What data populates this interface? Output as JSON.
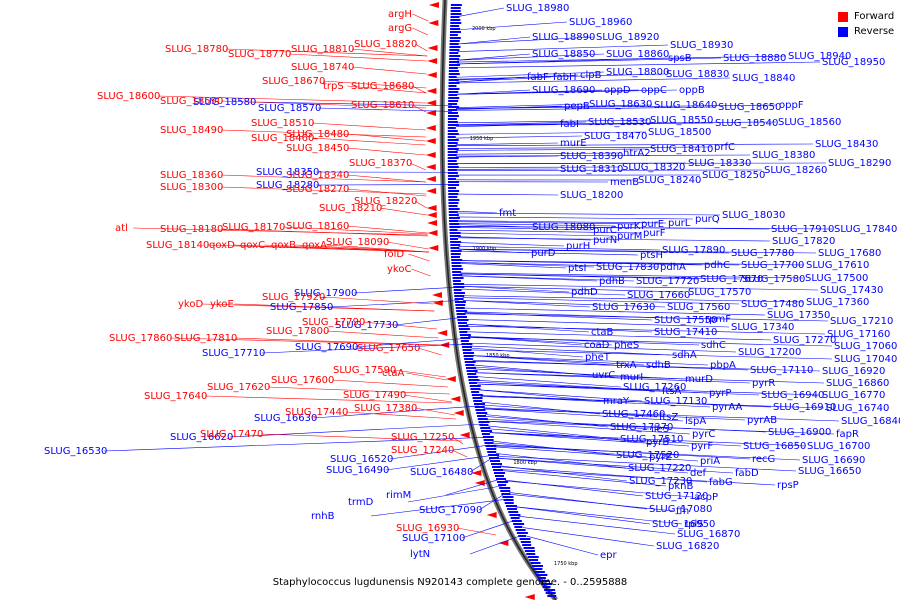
{
  "legend": {
    "forward_label": "Forward",
    "reverse_label": "Reverse",
    "forward_color": "#ff0000",
    "reverse_color": "#0000ff"
  },
  "caption": "Staphylococcus lugdunensis N920143 complete genome. - 0..2595888",
  "scale_ticks": [
    "2000 kbp",
    "1950 kbp",
    "1900 kbp",
    "1850 kbp",
    "1800 kbp",
    "1750 kbp"
  ],
  "forward_genes": [
    "argH",
    "argG",
    "SLUG_18780",
    "SLUG_18770",
    "SLUG_18810",
    "SLUG_18820",
    "SLUG_18740",
    "SLUG_18670",
    "trpS",
    "SLUG_18680",
    "SLUG_18600",
    "SLUG_18590",
    "SLUG_18610",
    "SLUG_18490",
    "SLUG_18510",
    "SLUG_18460",
    "SLUG_18480",
    "SLUG_18450",
    "SLUG_18370",
    "SLUG_18360",
    "SLUG_18340",
    "SLUG_18300",
    "SLUG_18270",
    "SLUG_18210",
    "SLUG_18220",
    "atl",
    "SLUG_18180",
    "SLUG_18170",
    "SLUG_18160",
    "SLUG_18140",
    "qoxD",
    "qoxC",
    "qoxB",
    "qoxA",
    "SLUG_18090",
    "folD",
    "ykoC",
    "ykoD",
    "ykoE",
    "SLUG_17920",
    "SLUG_17790",
    "SLUG_17800",
    "SLUG_17860",
    "SLUG_17810",
    "SLUG_17650",
    "SLUG_17590",
    "SLUG_17600",
    "SLUG_17620",
    "SLUG_17640",
    "ctaA",
    "SLUG_17490",
    "SLUG_17440",
    "SLUG_17380",
    "SLUG_17470",
    "SLUG_17250",
    "SLUG_17240",
    "SLUG_16930"
  ],
  "reverse_genes": [
    "SLUG_18980",
    "SLUG_18960",
    "SLUG_18890",
    "SLUG_18920",
    "SLUG_18930",
    "SLUG_18850",
    "SLUG_18860",
    "spsB",
    "SLUG_18880",
    "SLUG_18940",
    "SLUG_18950",
    "fabF",
    "fabH",
    "clpB",
    "SLUG_18800",
    "SLUG_18830",
    "SLUG_18840",
    "SLUG_18690",
    "oppD",
    "oppC",
    "oppB",
    "SLUG_18580",
    "SLUG_18570",
    "pepB",
    "SLUG_18630",
    "SLUG_18640",
    "SLUG_18650",
    "oppF",
    "fabI",
    "SLUG_18530",
    "SLUG_18550",
    "SLUG_18540",
    "SLUG_18560",
    "SLUG_18470",
    "SLUG_18500",
    "murE",
    "SLUG_18410",
    "prfC",
    "SLUG_18430",
    "SLUG_18390",
    "htrA2",
    "SLUG_18380",
    "SLUG_18310",
    "SLUG_18320",
    "SLUG_18330",
    "SLUG_18290",
    "SLUG_18350",
    "menB",
    "SLUG_18240",
    "SLUG_18250",
    "SLUG_18260",
    "SLUG_18280",
    "SLUG_18200",
    "fmt",
    "SLUG_18030",
    "SLUG_18080",
    "purC",
    "purK",
    "purE",
    "purL",
    "purQ",
    "SLUG_17910",
    "SLUG_17840",
    "purD",
    "purH",
    "purN",
    "purM",
    "purF",
    "SLUG_17820",
    "ptsH",
    "SLUG_17890",
    "SLUG_17780",
    "SLUG_17680",
    "ptsI",
    "SLUG_17830",
    "pdhA",
    "pdhC",
    "SLUG_17700",
    "SLUG_17610",
    "pdhB",
    "SLUG_17720",
    "SLUG_17670",
    "SLUG_17580",
    "SLUG_17500",
    "pdhD",
    "SLUG_17660",
    "SLUG_17570",
    "SLUG_17430",
    "SLUG_17900",
    "SLUG_17630",
    "SLUG_17560",
    "SLUG_17480",
    "SLUG_17360",
    "SLUG_17850",
    "SLUG_17550",
    "rpmF",
    "SLUG_17350",
    "SLUG_17210",
    "SLUG_17730",
    "ctaB",
    "SLUG_17410",
    "SLUG_17340",
    "SLUG_17160",
    "coaD",
    "pheS",
    "sdhC",
    "SLUG_17270",
    "SLUG_17060",
    "SLUG_17710",
    "SLUG_17690",
    "pheT",
    "sdhA",
    "SLUG_17200",
    "SLUG_17040",
    "trxA",
    "sdhB",
    "pbpA",
    "SLUG_17110",
    "SLUG_16920",
    "uvrC",
    "murI",
    "murD",
    "pyrR",
    "SLUG_16860",
    "SLUG_17260",
    "ftsA",
    "pyrP",
    "SLUG_16940",
    "SLUG_16770",
    "mraY",
    "SLUG_17130",
    "pyrAA",
    "SLUG_16910",
    "SLUG_16740",
    "SLUG_17460",
    "ftsZ",
    "lspA",
    "pyrAB",
    "SLUG_16840",
    "SLUG_16630",
    "SLUG_17370",
    "ileS",
    "pyrC",
    "SLUG_16900",
    "fapR",
    "SLUG_16620",
    "SLUG_17510",
    "pyrB",
    "pyrF",
    "SLUG_16850",
    "SLUG_16700",
    "SLUG_16530",
    "SLUG_17520",
    "pyrE",
    "priA",
    "recG",
    "SLUG_16690",
    "SLUG_16520",
    "SLUG_17220",
    "def",
    "fabD",
    "SLUG_16650",
    "SLUG_16490",
    "SLUG_17230",
    "pknB",
    "fabG",
    "rpsP",
    "SLUG_16480",
    "SLUG_17120",
    "acpP",
    "rimM",
    "SLUG_17080",
    "ffh",
    "trmD",
    "SLUG_17090",
    "SLUG_16950",
    "rplS",
    "rnhB",
    "SLUG_17100",
    "SLUG_16870",
    "lytN",
    "SLUG_16820",
    "epr"
  ]
}
